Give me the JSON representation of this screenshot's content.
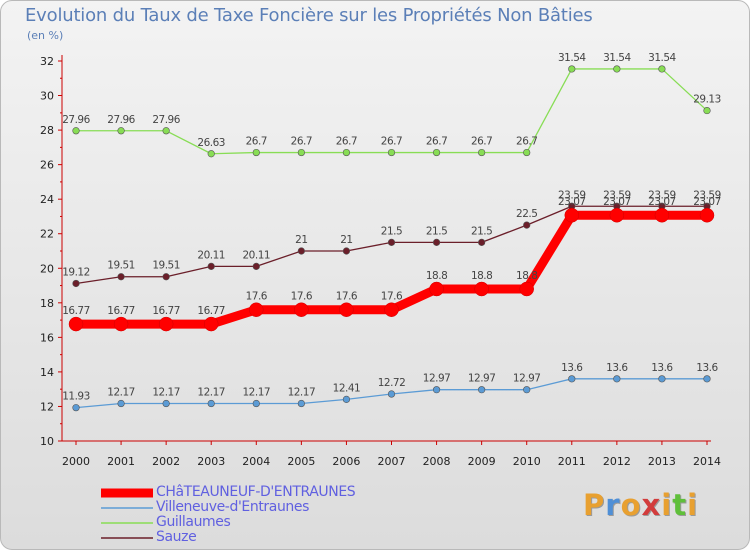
{
  "chart_data": {
    "type": "line",
    "title": "Evolution du Taux de Taxe Foncière sur les Propriétés Non Bâties",
    "subtitle": "(en %)",
    "x": [
      2000,
      2001,
      2002,
      2003,
      2004,
      2005,
      2006,
      2007,
      2008,
      2009,
      2010,
      2011,
      2012,
      2013,
      2014
    ],
    "ylim": [
      10,
      32
    ],
    "yticks": [
      10,
      12,
      14,
      16,
      18,
      20,
      22,
      24,
      26,
      28,
      30,
      32
    ],
    "grid": false,
    "legend_position": "bottom-left",
    "series": [
      {
        "name": "CHâTEAUNEUF-D'ENTRAUNES",
        "color": "#ff0000",
        "values": [
          16.77,
          16.77,
          16.77,
          16.77,
          17.6,
          17.6,
          17.6,
          17.6,
          18.8,
          18.8,
          18.8,
          23.07,
          23.07,
          23.07,
          23.07
        ],
        "labels": [
          "16.77",
          "16.77",
          "16.77",
          "16.77",
          "17.6",
          "17.6",
          "17.6",
          "17.6",
          "18.8",
          "18.8",
          "18.8",
          "23.07",
          "23.07",
          "23.07",
          "23.07"
        ]
      },
      {
        "name": "Villeneuve-d'Entraunes",
        "color": "#5b9bd5",
        "values": [
          11.93,
          12.17,
          12.17,
          12.17,
          12.17,
          12.17,
          12.41,
          12.72,
          12.97,
          12.97,
          12.97,
          13.6,
          13.6,
          13.6,
          13.6
        ],
        "labels": [
          "11.93",
          "12.17",
          "12.17",
          "12.17",
          "12.17",
          "12.17",
          "12.41",
          "12.72",
          "12.97",
          "12.97",
          "12.97",
          "13.6",
          "13.6",
          "13.6",
          "13.6"
        ]
      },
      {
        "name": "Guillaumes",
        "color": "#88dd55",
        "values": [
          27.96,
          27.96,
          27.96,
          26.63,
          26.7,
          26.7,
          26.7,
          26.7,
          26.7,
          26.7,
          26.7,
          31.54,
          31.54,
          31.54,
          29.13
        ],
        "labels": [
          "27.96",
          "27.96",
          "27.96",
          "26.63",
          "26.7",
          "26.7",
          "26.7",
          "26.7",
          "26.7",
          "26.7",
          "26.7",
          "31.54",
          "31.54",
          "31.54",
          "29.13"
        ]
      },
      {
        "name": "Sauze",
        "color": "#6b1f2a",
        "values": [
          19.12,
          19.51,
          19.51,
          20.11,
          20.11,
          21,
          21,
          21.5,
          21.5,
          21.5,
          22.5,
          23.59,
          23.59,
          23.59,
          23.59
        ],
        "labels": [
          "19.12",
          "19.51",
          "19.51",
          "20.11",
          "20.11",
          "21",
          "21",
          "21.5",
          "21.5",
          "21.5",
          "22.5",
          "23.59",
          "23.59",
          "23.59",
          "23.59"
        ]
      }
    ]
  },
  "logo": {
    "letters": [
      "P",
      "r",
      "o",
      "x",
      "i",
      "t",
      "i"
    ],
    "colors": [
      "#e8a030",
      "#4f8fd6",
      "#e8a030",
      "#d23c3c",
      "#e8a030",
      "#5fbf3a",
      "#e8a030"
    ]
  }
}
